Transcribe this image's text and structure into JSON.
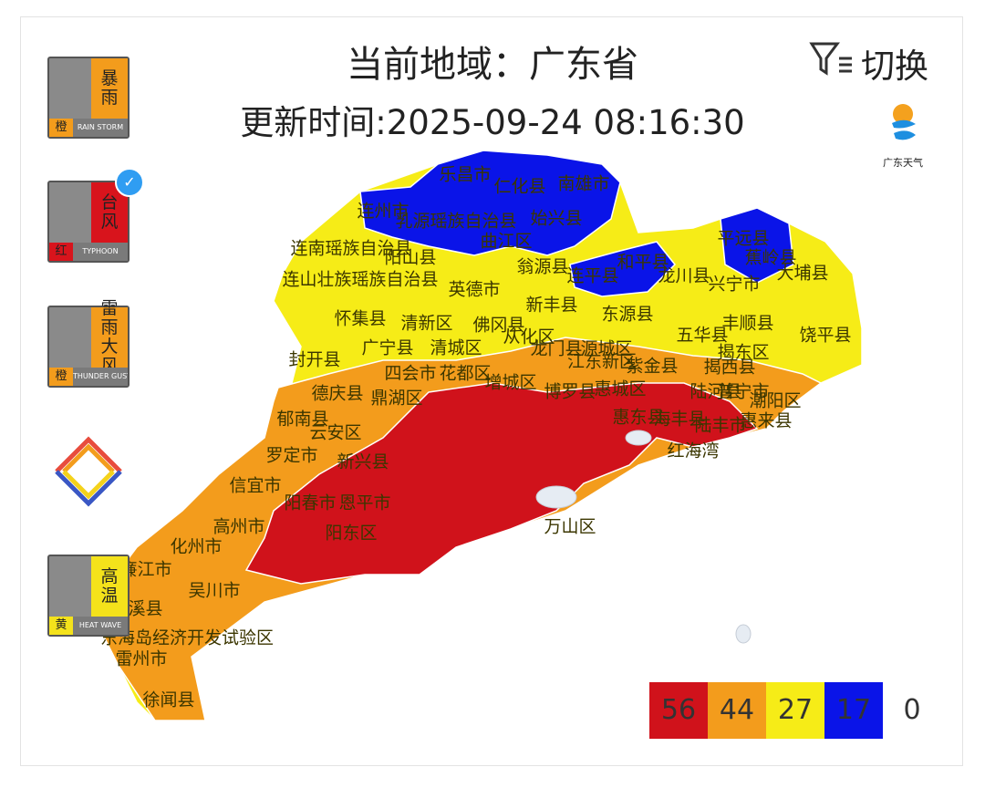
{
  "header": {
    "title": "当前地域：广东省",
    "update_time": "更新时间:2025-09-24 08:16:30"
  },
  "switch_button": {
    "label": "切换"
  },
  "logo": {
    "label": "广东天气"
  },
  "warnings": [
    {
      "name": "暴雨",
      "level": "橙",
      "english": "RAIN STORM",
      "color": "#f39c1c"
    },
    {
      "name": "台风",
      "level": "红",
      "english": "TYPHOON",
      "color": "#d8141c"
    },
    {
      "name": "雷雨大风",
      "level": "橙",
      "english": "THUNDER GUST",
      "color": "#f39c1c"
    },
    {
      "name": "高温",
      "level": "黄",
      "english": "HEAT WAVE",
      "color": "#f4e21b"
    }
  ],
  "map": {
    "labels": [
      "乐昌市",
      "南雄市",
      "仁化县",
      "连州市",
      "乳源瑶族自治县",
      "始兴县",
      "曲江区",
      "连南瑶族自治县",
      "阳山县",
      "连山壮族瑶族自治县",
      "翁源县",
      "英德市",
      "连平县",
      "和平县",
      "龙川县",
      "平远县",
      "蕉岭县",
      "大埔县",
      "兴宁市",
      "新丰县",
      "怀集县",
      "清新区",
      "佛冈县",
      "东源县",
      "五华县",
      "丰顺县",
      "饶平县",
      "封开县",
      "广宁县",
      "清城区",
      "从化区",
      "龙门县",
      "源城区",
      "揭东区",
      "四会市",
      "花都区",
      "增城区",
      "江东新区",
      "紫金县",
      "揭西县",
      "德庆县",
      "鼎湖区",
      "博罗县",
      "惠城区",
      "陆河县",
      "普宁市",
      "潮阳区",
      "郁南县",
      "云安区",
      "惠东县",
      "海丰县",
      "陆丰市",
      "惠来县",
      "红海湾",
      "罗定市",
      "新兴县",
      "信宜市",
      "阳春市",
      "恩平市",
      "高州市",
      "阳东区",
      "万山区",
      "化州市",
      "廉江市",
      "吴川市",
      "遂溪县",
      "东海岛经济开发试验区",
      "雷州市",
      "徐闻县"
    ]
  },
  "legend": [
    {
      "value": 56,
      "color": "#d0121b"
    },
    {
      "value": 44,
      "color": "#f39c1c"
    },
    {
      "value": 27,
      "color": "#f6ec17"
    },
    {
      "value": 17,
      "color": "#0a14e8"
    },
    {
      "value": 0,
      "color": "#ffffff"
    }
  ]
}
